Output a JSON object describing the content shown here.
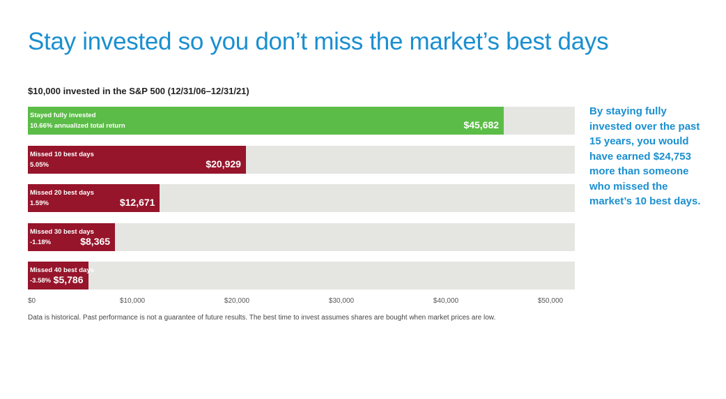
{
  "title": "Stay invested so you don’t miss the market’s best days",
  "callout": "By staying fully invested over the past 15 years, you would have earned $24,753 more than someone who missed the market’s 10 best days.",
  "footnote": "Data is historical. Past performance is not a guarantee of future results. The best time to invest assumes shares are bought when market prices are low.",
  "colors": {
    "title": "#1a8fd0",
    "stayed": "#5bbd47",
    "missed": "#96152b",
    "track": "#e5e5e2"
  },
  "chart_data": {
    "type": "bar",
    "orientation": "horizontal",
    "title": "$10,000 invested in the S&P 500 (12/31/06–12/31/21)",
    "xlim": [
      0,
      52500
    ],
    "ticks": [
      {
        "value": 0,
        "label": "$0"
      },
      {
        "value": 10000,
        "label": "$10,000"
      },
      {
        "value": 20000,
        "label": "$20,000"
      },
      {
        "value": 30000,
        "label": "$30,000"
      },
      {
        "value": 40000,
        "label": "$40,000"
      },
      {
        "value": 50000,
        "label": "$50,000"
      }
    ],
    "bars": [
      {
        "label": "Stayed fully invested",
        "rate": "10.66% annualized total return",
        "value": 45682,
        "value_label": "$45,682",
        "color": "#5bbd47"
      },
      {
        "label": "Missed 10 best days",
        "rate": "5.05%",
        "value": 20929,
        "value_label": "$20,929",
        "color": "#96152b"
      },
      {
        "label": "Missed 20 best days",
        "rate": "1.59%",
        "value": 12671,
        "value_label": "$12,671",
        "color": "#96152b"
      },
      {
        "label": "Missed 30 best days",
        "rate": "-1.18%",
        "value": 8365,
        "value_label": "$8,365",
        "color": "#96152b"
      },
      {
        "label": "Missed 40 best days",
        "rate": "-3.58%",
        "value": 5786,
        "value_label": "$5,786",
        "color": "#96152b"
      }
    ]
  }
}
